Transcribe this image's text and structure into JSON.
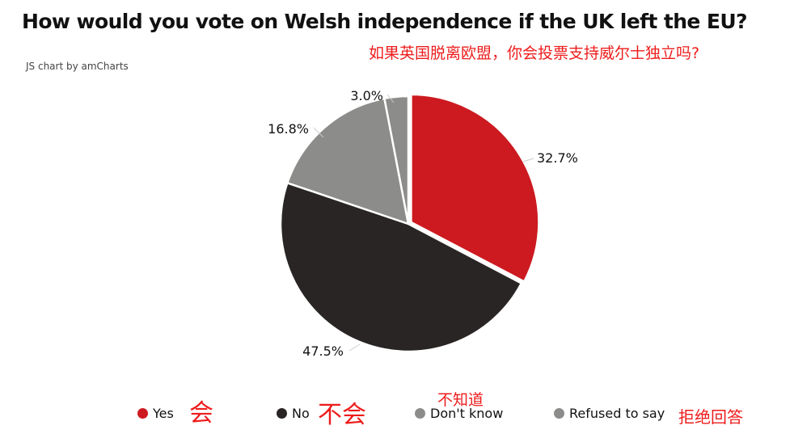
{
  "header": {
    "title": "How would you vote on Welsh independence if the UK left the EU?",
    "subtitle_cn": "如果英国脱离欧盟，你会投票支持威尔士独立吗?",
    "credit": "JS chart by amCharts"
  },
  "colors": {
    "yes": "#cc1a20",
    "no": "#292524",
    "dont_know": "#8c8c8b",
    "refused": "#8c8c8b",
    "annotation": "#ee1c1c"
  },
  "chart_data": {
    "type": "pie",
    "title": "How would you vote on Welsh independence if the UK left the EU?",
    "categories": [
      "Yes",
      "No",
      "Don't know",
      "Refused to say"
    ],
    "values": [
      32.7,
      47.5,
      16.8,
      3.0
    ],
    "labels": [
      "32.7%",
      "47.5%",
      "16.8%",
      "3.0%"
    ],
    "colors": [
      "#cc1a20",
      "#292524",
      "#8c8c8b",
      "#8c8c8b"
    ],
    "start_angle_deg": 0,
    "direction": "clockwise",
    "pulled_out": "Yes",
    "legend_position": "bottom"
  },
  "legend": {
    "items": [
      {
        "label": "Yes",
        "annotation_cn": "会"
      },
      {
        "label": "No",
        "annotation_cn": "不会"
      },
      {
        "label": "Don't know",
        "annotation_cn": "不知道"
      },
      {
        "label": "Refused to say",
        "annotation_cn": "拒绝回答"
      }
    ]
  }
}
